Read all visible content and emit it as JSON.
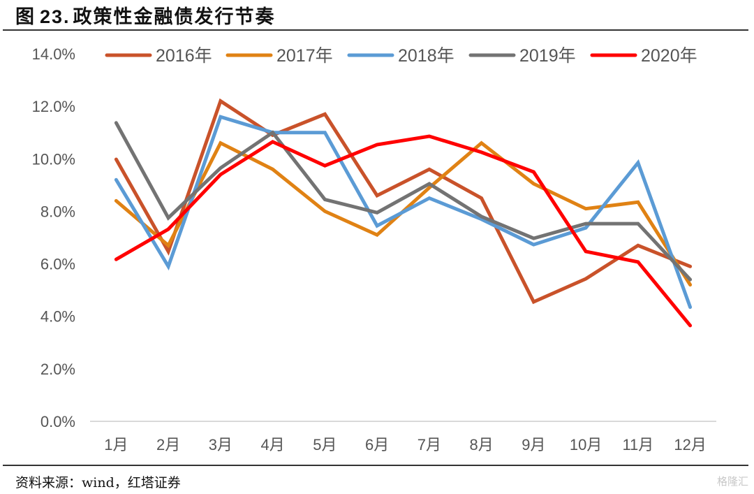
{
  "header": {
    "fig_label": "图",
    "fig_number": "23.",
    "title": "政策性金融债发行节奏"
  },
  "footer": {
    "source": "资料来源：wind，红塔证券",
    "watermark": "格隆汇"
  },
  "chart_data": {
    "type": "line",
    "title": "政策性金融债发行节奏",
    "xlabel": "",
    "ylabel": "",
    "categories": [
      "1月",
      "2月",
      "3月",
      "4月",
      "5月",
      "6月",
      "7月",
      "8月",
      "9月",
      "10月",
      "11月",
      "12月"
    ],
    "ylim": [
      0,
      14
    ],
    "yticks": [
      0,
      2,
      4,
      6,
      8,
      10,
      12,
      14
    ],
    "ytick_labels": [
      "0.0%",
      "2.0%",
      "4.0%",
      "6.0%",
      "8.0%",
      "10.0%",
      "12.0%",
      "14.0%"
    ],
    "grid": false,
    "legend_position": "top",
    "series": [
      {
        "name": "2016年",
        "color": "#C9522A",
        "values": [
          9.98,
          6.47,
          12.2,
          10.9,
          11.7,
          8.6,
          9.6,
          8.5,
          4.55,
          5.43,
          6.7,
          5.9
        ]
      },
      {
        "name": "2017年",
        "color": "#E08214",
        "values": [
          8.4,
          6.7,
          10.6,
          9.6,
          8.0,
          7.1,
          8.9,
          10.6,
          9.05,
          8.1,
          8.35,
          5.2
        ]
      },
      {
        "name": "2018年",
        "color": "#5B9BD5",
        "values": [
          9.2,
          5.9,
          11.6,
          11.0,
          11.0,
          7.45,
          8.5,
          7.7,
          6.73,
          7.37,
          9.85,
          4.35
        ]
      },
      {
        "name": "2019年",
        "color": "#737373",
        "values": [
          11.37,
          7.75,
          9.65,
          11.0,
          8.45,
          7.95,
          9.05,
          7.8,
          6.97,
          7.53,
          7.53,
          5.4
        ]
      },
      {
        "name": "2020年",
        "color": "#FF0000",
        "values": [
          6.17,
          7.32,
          9.4,
          10.65,
          9.74,
          10.54,
          10.86,
          10.25,
          9.5,
          6.47,
          6.07,
          3.65
        ]
      }
    ]
  }
}
